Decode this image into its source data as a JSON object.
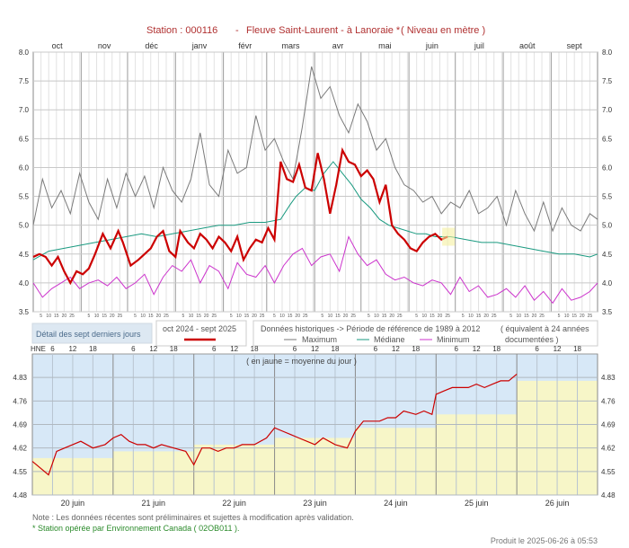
{
  "header": {
    "station": "Station : 000116",
    "sep": "-",
    "name": "Fleuve Saint-Laurent - à Lanoraie *",
    "unit": "( Niveau en mètre )"
  },
  "chart_data": [
    {
      "type": "line",
      "months": [
        "oct",
        "nov",
        "déc",
        "janv",
        "févr",
        "mars",
        "avr",
        "mai",
        "juin",
        "juil",
        "août",
        "sept"
      ],
      "days_in_month": [
        31,
        30,
        31,
        31,
        28,
        31,
        30,
        31,
        30,
        31,
        31,
        30
      ],
      "day_tick_labels": [
        "5",
        "10",
        "15",
        "20",
        "25"
      ],
      "ylim": [
        3.5,
        8.0
      ],
      "yticks": [
        "8.0",
        "7.5",
        "7.0",
        "6.5",
        "6.0",
        "5.5",
        "5.0",
        "4.5",
        "4.0",
        "3.5"
      ],
      "grid": true,
      "series": [
        {
          "name": "oct 2024 - sept 2025",
          "color": "#cc0000",
          "x": [
            0,
            4,
            8,
            12,
            16,
            20,
            24,
            28,
            32,
            36,
            40,
            45,
            50,
            55,
            58,
            63,
            68,
            72,
            76,
            80,
            84,
            88,
            92,
            95,
            100,
            104,
            108,
            112,
            116,
            120,
            124,
            128,
            132,
            136,
            140,
            144,
            148,
            152,
            156,
            160,
            164,
            168,
            172,
            176,
            180,
            184,
            188,
            192,
            196,
            200,
            204,
            208,
            212,
            216,
            220,
            224,
            228,
            232,
            236,
            240,
            244,
            248,
            252,
            256,
            260,
            264,
            268
          ],
          "y": [
            4.45,
            4.5,
            4.45,
            4.3,
            4.45,
            4.2,
            4.0,
            4.2,
            4.15,
            4.25,
            4.5,
            4.85,
            4.6,
            4.9,
            4.7,
            4.3,
            4.4,
            4.5,
            4.6,
            4.8,
            4.9,
            4.55,
            4.45,
            4.9,
            4.7,
            4.6,
            4.85,
            4.75,
            4.6,
            4.8,
            4.7,
            4.55,
            4.8,
            4.4,
            4.6,
            4.75,
            4.7,
            4.95,
            4.75,
            6.1,
            5.8,
            5.75,
            6.05,
            5.65,
            5.6,
            6.25,
            5.8,
            5.2,
            5.7,
            6.3,
            6.1,
            6.05,
            5.85,
            5.95,
            5.8,
            5.4,
            5.7,
            5.0,
            4.85,
            4.75,
            4.6,
            4.55,
            4.7,
            4.8,
            4.85,
            4.75,
            4.8
          ]
        },
        {
          "name": "Maximum",
          "color": "#7a7a7a",
          "x": [
            0,
            6,
            12,
            18,
            24,
            30,
            36,
            42,
            48,
            54,
            60,
            66,
            72,
            78,
            84,
            90,
            96,
            102,
            108,
            114,
            120,
            126,
            132,
            138,
            144,
            150,
            156,
            162,
            168,
            174,
            180,
            186,
            192,
            198,
            204,
            210,
            216,
            222,
            228,
            234,
            240,
            246,
            252,
            258,
            264,
            270,
            276,
            282,
            288,
            294,
            300,
            306,
            312,
            318,
            324,
            330,
            336,
            342,
            348,
            354,
            360,
            365
          ],
          "y": [
            5.0,
            5.8,
            5.3,
            5.6,
            5.2,
            5.9,
            5.4,
            5.1,
            5.8,
            5.3,
            5.9,
            5.5,
            5.85,
            5.3,
            6.0,
            5.6,
            5.4,
            5.8,
            6.6,
            5.7,
            5.5,
            6.3,
            5.9,
            6.0,
            6.9,
            6.3,
            6.5,
            6.1,
            5.8,
            6.7,
            7.75,
            7.2,
            7.4,
            6.9,
            6.6,
            7.1,
            6.8,
            6.3,
            6.5,
            6.0,
            5.7,
            5.6,
            5.4,
            5.5,
            5.2,
            5.4,
            5.3,
            5.6,
            5.2,
            5.3,
            5.5,
            5.0,
            5.6,
            5.2,
            4.9,
            5.4,
            4.9,
            5.3,
            5.0,
            4.9,
            5.2,
            5.1
          ]
        },
        {
          "name": "Médiane",
          "color": "#1a9a80",
          "x": [
            0,
            10,
            20,
            30,
            40,
            50,
            60,
            70,
            80,
            90,
            100,
            110,
            120,
            130,
            140,
            150,
            160,
            166,
            170,
            176,
            182,
            188,
            194,
            200,
            206,
            212,
            218,
            224,
            230,
            236,
            242,
            248,
            254,
            260,
            270,
            280,
            290,
            300,
            310,
            320,
            330,
            340,
            350,
            360,
            365
          ],
          "y": [
            4.4,
            4.55,
            4.6,
            4.65,
            4.7,
            4.75,
            4.8,
            4.85,
            4.8,
            4.85,
            4.9,
            4.95,
            5.0,
            5.0,
            5.05,
            5.05,
            5.1,
            5.35,
            5.5,
            5.65,
            5.6,
            5.9,
            6.1,
            5.9,
            5.7,
            5.45,
            5.3,
            5.1,
            5.0,
            4.95,
            4.9,
            4.85,
            4.85,
            4.8,
            4.8,
            4.75,
            4.7,
            4.7,
            4.65,
            4.6,
            4.55,
            4.5,
            4.5,
            4.45,
            4.5
          ]
        },
        {
          "name": "Minimum",
          "color": "#cc33cc",
          "x": [
            0,
            6,
            12,
            18,
            24,
            30,
            36,
            42,
            48,
            54,
            60,
            66,
            72,
            78,
            84,
            90,
            96,
            102,
            108,
            114,
            120,
            126,
            132,
            138,
            144,
            150,
            156,
            162,
            168,
            174,
            180,
            186,
            192,
            198,
            204,
            210,
            216,
            222,
            228,
            234,
            240,
            246,
            252,
            258,
            264,
            270,
            276,
            282,
            288,
            294,
            300,
            306,
            312,
            318,
            324,
            330,
            336,
            342,
            348,
            354,
            360,
            365
          ],
          "y": [
            4.0,
            3.75,
            3.9,
            4.0,
            4.1,
            3.9,
            4.0,
            4.05,
            3.95,
            4.1,
            3.9,
            4.0,
            4.15,
            3.8,
            4.1,
            4.3,
            4.2,
            4.4,
            4.0,
            4.3,
            4.2,
            3.9,
            4.35,
            4.15,
            4.1,
            4.3,
            4.0,
            4.3,
            4.5,
            4.6,
            4.3,
            4.45,
            4.5,
            4.2,
            4.8,
            4.5,
            4.3,
            4.4,
            4.15,
            4.05,
            4.1,
            4.0,
            3.95,
            4.05,
            4.0,
            3.8,
            4.1,
            3.85,
            3.95,
            3.75,
            3.8,
            3.9,
            3.75,
            3.95,
            3.7,
            3.85,
            3.65,
            3.9,
            3.7,
            3.75,
            3.85,
            4.0
          ]
        }
      ]
    },
    {
      "type": "line",
      "title": "( en jaune = moyenne du jour )",
      "hne": "HNE",
      "hour_labels": [
        "6",
        "12",
        "18"
      ],
      "days": [
        "20 juin",
        "21 juin",
        "22 juin",
        "23 juin",
        "24 juin",
        "25 juin",
        "26 juin"
      ],
      "ylim": [
        4.48,
        4.9
      ],
      "yticks": [
        "4.83",
        "4.76",
        "4.69",
        "4.62",
        "4.55",
        "4.48"
      ],
      "grid": true,
      "daily_mean": [
        4.59,
        4.61,
        4.63,
        4.65,
        4.68,
        4.72,
        4.82
      ],
      "series": [
        {
          "name": "",
          "color": "#cc0000",
          "x": [
            0,
            0.1,
            0.2,
            0.3,
            0.4,
            0.5,
            0.6,
            0.75,
            0.9,
            1.0,
            1.1,
            1.2,
            1.3,
            1.4,
            1.5,
            1.6,
            1.75,
            1.9,
            2.0,
            2.1,
            2.2,
            2.3,
            2.4,
            2.5,
            2.6,
            2.75,
            2.9,
            3.0,
            3.1,
            3.2,
            3.3,
            3.4,
            3.5,
            3.6,
            3.75,
            3.9,
            4.0,
            4.1,
            4.2,
            4.3,
            4.4,
            4.5,
            4.6,
            4.75,
            4.85,
            4.95,
            5.0,
            5.1,
            5.2,
            5.3,
            5.4,
            5.5,
            5.6,
            5.7,
            5.8,
            5.9,
            5.95,
            6.0
          ],
          "y": [
            4.58,
            4.56,
            4.54,
            4.61,
            4.62,
            4.63,
            4.64,
            4.62,
            4.63,
            4.65,
            4.66,
            4.64,
            4.63,
            4.63,
            4.62,
            4.63,
            4.62,
            4.61,
            4.57,
            4.62,
            4.62,
            4.61,
            4.62,
            4.62,
            4.63,
            4.63,
            4.65,
            4.68,
            4.67,
            4.66,
            4.65,
            4.64,
            4.63,
            4.65,
            4.63,
            4.62,
            4.67,
            4.7,
            4.7,
            4.7,
            4.71,
            4.71,
            4.73,
            4.72,
            4.73,
            4.72,
            4.78,
            4.79,
            4.8,
            4.8,
            4.8,
            4.81,
            4.8,
            4.81,
            4.82,
            4.82,
            4.83,
            4.84
          ]
        }
      ]
    }
  ],
  "legend": {
    "detail_btn": "Détail des sept derniers jours",
    "current_period": "oct 2024 - sept 2025",
    "hist_title": "Données historiques -> Période de référence  de 1989 à 2012",
    "equiv": "( équivalent à 24 années documentées )",
    "max_label": "Maximum",
    "med_label": "Médiane",
    "min_label": "Minimum"
  },
  "footer": {
    "note": "Note : Les données récentes sont préliminaires et sujettes à modification après validation.",
    "station_note": "* Station opérée par Environnement Canada ( 02OB011 ).",
    "produced": "Produit le 2025-06-26 à 05:53"
  }
}
